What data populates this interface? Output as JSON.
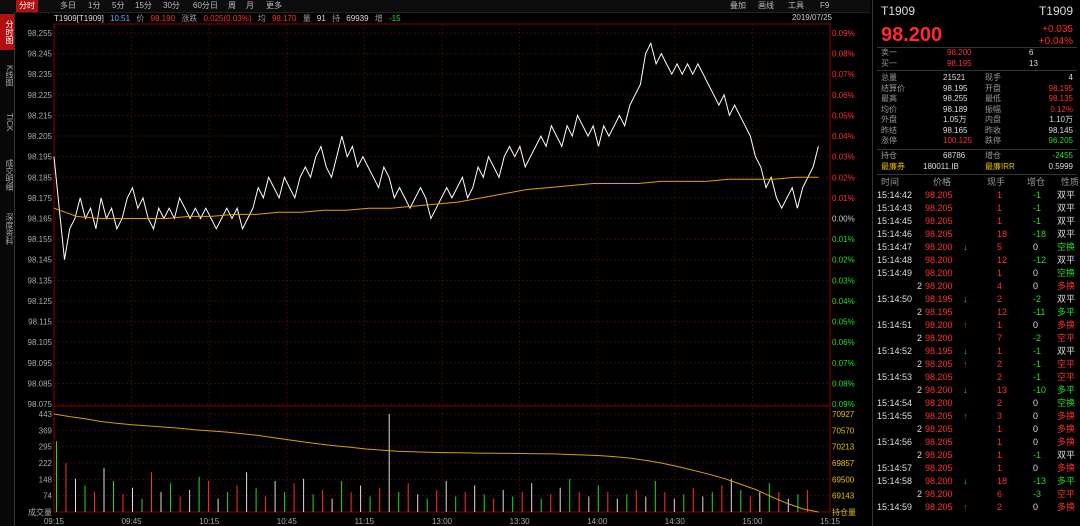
{
  "toolbar": {
    "tabs": [
      "分时",
      "多日",
      "1分",
      "5分",
      "15分",
      "30分",
      "60分",
      "日",
      "周",
      "月",
      "更多"
    ],
    "tools": [
      "叠加",
      "画线",
      "工具",
      "F9"
    ]
  },
  "side_nav": [
    "分时图",
    "K线图",
    "TICK",
    "成交明细",
    "深度资料"
  ],
  "header": {
    "code": "T1909[T1909]",
    "time": "10:51",
    "price_label": "价",
    "price": "98.190",
    "chg_label": "涨跌",
    "chg": "0.025(0.03%)",
    "avg_label": "均",
    "avg": "98.170",
    "vol_label": "量",
    "vol": "91",
    "oi_label": "持",
    "oi": "69939",
    "inc_label": "增",
    "inc": "-15",
    "date": "2019/07/25"
  },
  "colors": {
    "up": "#ff3030",
    "down": "#22dd22",
    "avg_line": "#e5a000",
    "price_line": "#ffffff",
    "oi_line": "#d4a000"
  },
  "chart_data": {
    "type": "line",
    "price_axis": [
      "98.255",
      "98.245",
      "98.235",
      "98.225",
      "98.215",
      "98.205",
      "98.195",
      "98.185",
      "98.175",
      "98.165",
      "98.155",
      "98.145",
      "98.135",
      "98.125",
      "98.115",
      "98.105",
      "98.095",
      "98.085",
      "98.075"
    ],
    "pct_axis": [
      "0.09%",
      "0.08%",
      "0.07%",
      "0.06%",
      "0.05%",
      "0.04%",
      "0.03%",
      "0.02%",
      "0.01%",
      "0.00%",
      "0.01%",
      "0.02%",
      "0.03%",
      "0.04%",
      "0.05%",
      "0.06%",
      "0.07%",
      "0.08%",
      "0.09%"
    ],
    "pct_axis_colors": [
      "up",
      "up",
      "up",
      "up",
      "up",
      "up",
      "up",
      "up",
      "up",
      "flat",
      "down",
      "down",
      "down",
      "down",
      "down",
      "down",
      "down",
      "down",
      "down"
    ],
    "vol_axis": [
      "443",
      "369",
      "295",
      "222",
      "148",
      "74",
      "成交量"
    ],
    "oi_axis": [
      "70927",
      "70570",
      "70213",
      "69857",
      "69500",
      "69143",
      "持仓量"
    ],
    "time_axis": [
      "09:15",
      "09:45",
      "10:15",
      "10:45",
      "11:15",
      "13:00",
      "13:30",
      "14:00",
      "14:30",
      "15:00",
      "15:15"
    ],
    "prev_settle": 98.165,
    "price_min": 98.075,
    "price_max": 98.255,
    "price": [
      98.195,
      98.17,
      98.145,
      98.16,
      98.165,
      98.175,
      98.165,
      98.17,
      98.16,
      98.175,
      98.165,
      98.17,
      98.16,
      98.165,
      98.175,
      98.18,
      98.17,
      98.175,
      98.165,
      98.16,
      98.17,
      98.165,
      98.17,
      98.165,
      98.175,
      98.17,
      98.165,
      98.17,
      98.165,
      98.17,
      98.165,
      98.16,
      98.165,
      98.17,
      98.165,
      98.17,
      98.16,
      98.165,
      98.17,
      98.18,
      98.175,
      98.185,
      98.18,
      98.175,
      98.185,
      98.18,
      98.175,
      98.185,
      98.19,
      98.185,
      98.195,
      98.2,
      98.19,
      98.185,
      98.195,
      98.205,
      98.195,
      98.2,
      98.19,
      98.195,
      98.19,
      98.185,
      98.18,
      98.19,
      98.185,
      98.175,
      98.18,
      98.175,
      98.17,
      98.175,
      98.18,
      98.175,
      98.165,
      98.17,
      98.175,
      98.18,
      98.175,
      98.18,
      98.185,
      98.175,
      98.18,
      98.19,
      98.185,
      98.195,
      98.19,
      98.185,
      98.195,
      98.2,
      98.195,
      98.2,
      98.19,
      98.195,
      98.2,
      98.205,
      98.2,
      98.21,
      98.205,
      98.2,
      98.21,
      98.205,
      98.215,
      98.21,
      98.205,
      98.21,
      98.2,
      98.21,
      98.205,
      98.21,
      98.215,
      98.21,
      98.22,
      98.225,
      98.23,
      98.245,
      98.25,
      98.24,
      98.245,
      98.24,
      98.235,
      98.24,
      98.235,
      98.24,
      98.235,
      98.24,
      98.235,
      98.23,
      98.225,
      98.22,
      98.225,
      98.215,
      98.22,
      98.215,
      98.21,
      98.205,
      98.195,
      98.19,
      98.18,
      98.185,
      98.175,
      98.17,
      98.175,
      98.18,
      98.17,
      98.18,
      98.185,
      98.19,
      98.2
    ],
    "avg_line": [
      98.17,
      98.166,
      98.165,
      98.165,
      98.165,
      98.165,
      98.166,
      98.166,
      98.167,
      98.167,
      98.168,
      98.168,
      98.169,
      98.169,
      98.17,
      98.17,
      98.171,
      98.172,
      98.173,
      98.175,
      98.177,
      98.179,
      98.18,
      98.181,
      98.182,
      98.182,
      98.182,
      98.183,
      98.183,
      98.183,
      98.184,
      98.184,
      98.184,
      98.185,
      98.185
    ],
    "volume": [
      320,
      220,
      150,
      120,
      90,
      200,
      140,
      80,
      110,
      60,
      180,
      90,
      130,
      70,
      100,
      160,
      140,
      60,
      90,
      120,
      180,
      110,
      70,
      140,
      90,
      130,
      150,
      80,
      100,
      60,
      140,
      90,
      120,
      70,
      110,
      443,
      90,
      130,
      80,
      60,
      100,
      140,
      70,
      90,
      120,
      80,
      60,
      100,
      70,
      90,
      130,
      60,
      80,
      110,
      150,
      90,
      70,
      120,
      90,
      60,
      80,
      100,
      70,
      140,
      90,
      60,
      80,
      110,
      70,
      90,
      120,
      150,
      100,
      70,
      90,
      130,
      90,
      60,
      80,
      100
    ],
    "oi_line": [
      70927,
      70880,
      70840,
      70790,
      70760,
      70730,
      70710,
      70690,
      70670,
      70640,
      70620,
      70600,
      70570,
      70540,
      70500,
      70460,
      70420,
      70380,
      70350,
      70320,
      70290,
      70270,
      70250,
      70240,
      70230,
      70225,
      70220,
      70215,
      70213,
      70210,
      70208,
      70205,
      70200,
      70190,
      70180,
      70170,
      70150,
      70120,
      70080,
      70030,
      69970,
      69900,
      69830,
      69750,
      69650,
      69550,
      69420,
      69300,
      69200,
      69143
    ]
  },
  "right": {
    "code_left": "T1909",
    "code_right": "T1909",
    "last": "98.200",
    "chg": "+0.035",
    "chg_pct": "+0.04%",
    "ask_label": "卖一",
    "ask_price": "98.200",
    "ask_vol": "6",
    "bid_label": "买一",
    "bid_price": "98.195",
    "bid_vol": "13",
    "stats": [
      [
        "总量",
        "21521",
        "现手",
        "4"
      ],
      [
        "结算价",
        "98.195",
        "开盘",
        "98.195"
      ],
      [
        "最高",
        "98.255",
        "最低",
        "98.135"
      ],
      [
        "均价",
        "98.189",
        "振幅",
        "0.12%"
      ],
      [
        "外盘",
        "1.05万",
        "内盘",
        "1.10万"
      ],
      [
        "昨结",
        "98.165",
        "昨收",
        "98.145"
      ],
      [
        "涨停",
        "100.125",
        "跌停",
        "96.205"
      ]
    ],
    "oi_label": "持仓",
    "oi_val": "68786",
    "inc_label": "增仓",
    "inc_val": "-2455",
    "ctd_label": "最廉券",
    "ctd_val": "180011.IB",
    "irr_label": "最廉IRR",
    "irr_val": "0.5999",
    "tick_headers": [
      "时间",
      "价格",
      "现手",
      "增仓",
      "性质"
    ],
    "ticks": [
      [
        "15:14:42",
        "98.205",
        "",
        "1",
        "-1",
        "双平"
      ],
      [
        "15:14:43",
        "98.205",
        "",
        "1",
        "-1",
        "双平"
      ],
      [
        "15:14:45",
        "98.205",
        "",
        "1",
        "-1",
        "双平"
      ],
      [
        "15:14:46",
        "98.205",
        "",
        "18",
        "-18",
        "双平"
      ],
      [
        "15:14:47",
        "98.200",
        "↓",
        "5",
        "0",
        "空换"
      ],
      [
        "15:14:48",
        "98.200",
        "",
        "12",
        "-12",
        "双平"
      ],
      [
        "15:14:49",
        "98.200",
        "",
        "1",
        "0",
        "空换"
      ],
      [
        "2",
        "98.200",
        "",
        "4",
        "0",
        "多换"
      ],
      [
        "15:14:50",
        "98.195",
        "↓",
        "2",
        "-2",
        "双平"
      ],
      [
        "2",
        "98.195",
        "",
        "12",
        "-11",
        "多平"
      ],
      [
        "15:14:51",
        "98.200",
        "↑",
        "1",
        "0",
        "多换"
      ],
      [
        "2",
        "98.200",
        "",
        "7",
        "-2",
        "空平"
      ],
      [
        "15:14:52",
        "98.195",
        "↓",
        "1",
        "-1",
        "双平"
      ],
      [
        "2",
        "98.205",
        "↑",
        "2",
        "-1",
        "空平"
      ],
      [
        "15:14:53",
        "98.205",
        "",
        "2",
        "-1",
        "空平"
      ],
      [
        "2",
        "98.200",
        "↓",
        "13",
        "-10",
        "多平"
      ],
      [
        "15:14:54",
        "98.200",
        "",
        "2",
        "0",
        "空换"
      ],
      [
        "15:14:55",
        "98.205",
        "↑",
        "3",
        "0",
        "多换"
      ],
      [
        "2",
        "98.205",
        "",
        "1",
        "0",
        "多换"
      ],
      [
        "15:14:56",
        "98.205",
        "",
        "1",
        "0",
        "多换"
      ],
      [
        "2",
        "98.205",
        "",
        "1",
        "-1",
        "双平"
      ],
      [
        "15:14:57",
        "98.205",
        "",
        "1",
        "0",
        "多换"
      ],
      [
        "15:14:58",
        "98.200",
        "↓",
        "18",
        "-13",
        "多平"
      ],
      [
        "2",
        "98.200",
        "",
        "6",
        "-3",
        "空平"
      ],
      [
        "15:14:59",
        "98.205",
        "↑",
        "2",
        "0",
        "多换"
      ]
    ]
  }
}
